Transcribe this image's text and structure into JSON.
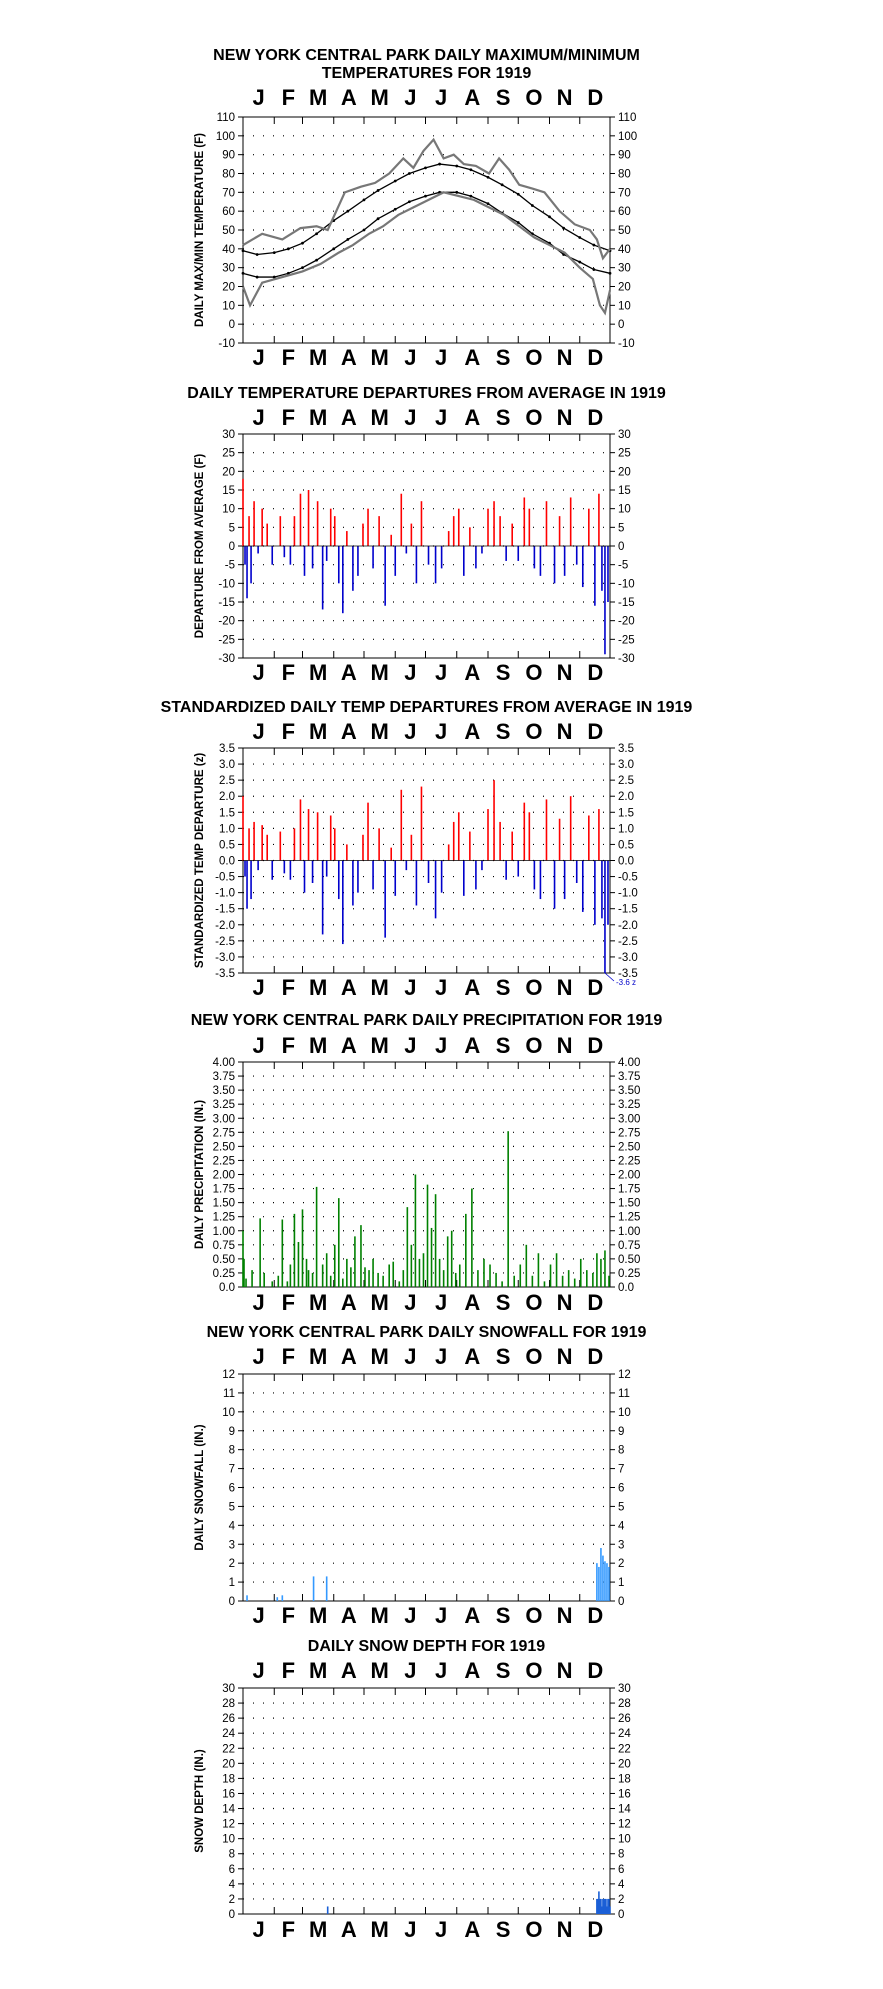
{
  "months": [
    "J",
    "F",
    "M",
    "A",
    "M",
    "J",
    "J",
    "A",
    "S",
    "O",
    "N",
    "D"
  ],
  "colors": {
    "max_min": "#777777",
    "normals": "#000000",
    "positive": "#ff0000",
    "negative": "#0000cc",
    "precip": "#008000",
    "snow": "#3399ff",
    "depth": "#1a5fd6"
  },
  "chart_data": [
    {
      "id": "maxmin",
      "type": "line",
      "title_lines": [
        "NEW YORK CENTRAL PARK DAILY MAXIMUM/MINIMUM",
        "TEMPERATURES FOR 1919"
      ],
      "ylabel": "DAILY MAX/MIN TEMPERATURE (F)",
      "ylim": [
        -10,
        110
      ],
      "yticks": [
        -10,
        0,
        10,
        20,
        30,
        40,
        50,
        60,
        70,
        80,
        90,
        100,
        110
      ],
      "ytick_labels": [
        "-10",
        "0",
        "10",
        "20",
        "30",
        "40",
        "50",
        "60",
        "70",
        "80",
        "90",
        "100",
        "110"
      ],
      "x_labels": [
        "J",
        "F",
        "M",
        "A",
        "M",
        "J",
        "J",
        "A",
        "S",
        "O",
        "N",
        "D"
      ],
      "series": [
        {
          "kind": "normal_max",
          "days": [
            1,
            15,
            32,
            46,
            60,
            74,
            91,
            105,
            121,
            135,
            152,
            166,
            182,
            196,
            213,
            227,
            244,
            258,
            274,
            288,
            305,
            319,
            335,
            349,
            365
          ],
          "values": [
            39,
            37,
            38,
            40,
            43,
            48,
            55,
            60,
            66,
            71,
            76,
            80,
            83,
            85,
            84,
            82,
            78,
            74,
            69,
            63,
            57,
            51,
            46,
            42,
            39
          ]
        },
        {
          "kind": "normal_min",
          "days": [
            1,
            15,
            32,
            46,
            60,
            74,
            91,
            105,
            121,
            135,
            152,
            166,
            182,
            196,
            213,
            227,
            244,
            258,
            274,
            288,
            305,
            319,
            335,
            349,
            365
          ],
          "values": [
            27,
            25,
            25,
            27,
            30,
            34,
            40,
            45,
            50,
            56,
            61,
            65,
            68,
            70,
            70,
            68,
            64,
            59,
            54,
            48,
            43,
            37,
            33,
            29,
            27
          ]
        },
        {
          "kind": "observed_max",
          "days": [
            1,
            20,
            40,
            58,
            74,
            85,
            102,
            118,
            132,
            146,
            160,
            170,
            180,
            190,
            200,
            210,
            220,
            232,
            245,
            255,
            265,
            275,
            288,
            300,
            315,
            330,
            345,
            352,
            358,
            365
          ],
          "values": [
            42,
            48,
            45,
            51,
            52,
            50,
            70,
            73,
            75,
            80,
            88,
            83,
            92,
            98,
            88,
            90,
            85,
            84,
            80,
            88,
            82,
            74,
            72,
            70,
            60,
            53,
            50,
            45,
            35,
            40
          ]
        },
        {
          "kind": "observed_min",
          "days": [
            1,
            8,
            20,
            40,
            60,
            78,
            96,
            110,
            126,
            140,
            155,
            170,
            185,
            200,
            215,
            230,
            245,
            260,
            275,
            290,
            305,
            320,
            335,
            348,
            355,
            360,
            365
          ],
          "values": [
            20,
            10,
            22,
            25,
            28,
            32,
            38,
            42,
            48,
            52,
            58,
            62,
            66,
            70,
            68,
            66,
            62,
            58,
            52,
            46,
            42,
            38,
            30,
            24,
            10,
            6,
            18
          ]
        }
      ]
    },
    {
      "id": "departures",
      "type": "bar",
      "title_lines": [
        "DAILY TEMPERATURE DEPARTURES FROM AVERAGE IN 1919"
      ],
      "ylabel": "DEPARTURE FROM AVERAGE (F)",
      "ylim": [
        -30,
        30
      ],
      "yticks": [
        -30,
        -25,
        -20,
        -15,
        -10,
        -5,
        0,
        5,
        10,
        15,
        20,
        25,
        30
      ],
      "ytick_labels": [
        "-30",
        "-25",
        "-20",
        "-15",
        "-10",
        "-5",
        "0",
        "5",
        "10",
        "15",
        "20",
        "25",
        "30"
      ],
      "x_labels": [
        "J",
        "F",
        "M",
        "A",
        "M",
        "J",
        "J",
        "A",
        "S",
        "O",
        "N",
        "D"
      ],
      "days": [
        1,
        3,
        5,
        7,
        9,
        12,
        16,
        20,
        25,
        30,
        38,
        42,
        48,
        52,
        58,
        62,
        66,
        70,
        75,
        80,
        84,
        88,
        92,
        96,
        100,
        104,
        110,
        115,
        120,
        125,
        130,
        136,
        142,
        148,
        152,
        158,
        163,
        168,
        173,
        178,
        185,
        192,
        198,
        205,
        210,
        215,
        220,
        226,
        232,
        238,
        244,
        250,
        256,
        262,
        268,
        274,
        280,
        285,
        290,
        296,
        302,
        310,
        315,
        320,
        326,
        332,
        338,
        344,
        350,
        354,
        357,
        360,
        363
      ],
      "values": [
        18,
        -5,
        -14,
        8,
        -10,
        12,
        -2,
        10,
        6,
        -5,
        8,
        -3,
        -5,
        8,
        14,
        -8,
        15,
        -6,
        12,
        -17,
        -4,
        10,
        8,
        -10,
        -18,
        4,
        -12,
        -8,
        6,
        10,
        -6,
        8,
        -16,
        3,
        -8,
        14,
        -2,
        6,
        -10,
        12,
        -5,
        -10,
        -6,
        4,
        8,
        10,
        -8,
        5,
        -6,
        -2,
        10,
        12,
        8,
        -4,
        6,
        -4,
        13,
        10,
        -6,
        -8,
        12,
        -10,
        8,
        -8,
        13,
        -5,
        -11,
        10,
        -16,
        14,
        -12,
        -29,
        -15
      ]
    },
    {
      "id": "standardized",
      "type": "bar",
      "title_lines": [
        "STANDARDIZED DAILY TEMP DEPARTURES FROM AVERAGE IN 1919"
      ],
      "ylabel": "STANDARDIZED TEMP DEPARTURE (z)",
      "ylim": [
        -3.5,
        3.5
      ],
      "yticks": [
        -3.5,
        -3.0,
        -2.5,
        -2.0,
        -1.5,
        -1.0,
        -0.5,
        0.0,
        0.5,
        1.0,
        1.5,
        2.0,
        2.5,
        3.0,
        3.5
      ],
      "ytick_labels_left": [
        "3.5",
        "3.0",
        "2.5",
        "2.0",
        "1.5",
        "1.0",
        "0.5",
        "0.0",
        "-0.5",
        "-1.0",
        "-1.5",
        "-2.0",
        "-2.5",
        "-3.0",
        "-3.5"
      ],
      "ytick_labels_right": [
        "3.5",
        "3.0",
        "2.5",
        "2.0",
        "1.5",
        "1.0",
        "0.5",
        "0.0",
        "-0.5",
        "-1.0",
        "-1.5",
        "-2.0",
        "-2.5",
        "-3.0",
        "-3.5"
      ],
      "x_labels": [
        "J",
        "F",
        "M",
        "A",
        "M",
        "J",
        "J",
        "A",
        "S",
        "O",
        "N",
        "D"
      ],
      "annotation": "-3.6 z",
      "days": [
        1,
        3,
        5,
        7,
        9,
        12,
        16,
        20,
        25,
        30,
        38,
        42,
        48,
        52,
        58,
        62,
        66,
        70,
        75,
        80,
        84,
        88,
        92,
        96,
        100,
        104,
        110,
        115,
        120,
        125,
        130,
        136,
        142,
        148,
        152,
        158,
        163,
        168,
        173,
        178,
        185,
        192,
        198,
        205,
        210,
        215,
        220,
        226,
        232,
        238,
        244,
        250,
        256,
        262,
        268,
        274,
        280,
        285,
        290,
        296,
        302,
        310,
        315,
        320,
        326,
        332,
        338,
        344,
        350,
        354,
        357,
        360,
        363
      ],
      "values": [
        2.0,
        -0.5,
        -1.5,
        1.0,
        -1.2,
        1.2,
        -0.3,
        1.1,
        0.8,
        -0.6,
        0.9,
        -0.4,
        -0.6,
        1.0,
        1.9,
        -1.0,
        1.6,
        -0.7,
        1.5,
        -2.3,
        -0.5,
        1.4,
        1.0,
        -1.2,
        -2.6,
        0.5,
        -1.4,
        -1.0,
        0.8,
        1.8,
        -0.9,
        1.0,
        -2.4,
        0.4,
        -1.1,
        2.2,
        -0.3,
        0.8,
        -1.4,
        2.3,
        -0.7,
        -1.8,
        -1.0,
        0.5,
        1.2,
        1.5,
        -1.1,
        0.9,
        -0.9,
        -0.3,
        1.6,
        2.5,
        1.2,
        -0.6,
        0.9,
        -0.5,
        1.8,
        1.5,
        -0.9,
        -1.2,
        1.9,
        -1.5,
        1.3,
        -1.2,
        2.0,
        -0.7,
        -1.6,
        1.4,
        -2.0,
        1.6,
        -1.8,
        -3.6,
        -2.0
      ]
    },
    {
      "id": "precip",
      "type": "bar",
      "title_lines": [
        "NEW YORK CENTRAL PARK DAILY PRECIPITATION FOR 1919"
      ],
      "ylabel": "DAILY PRECIPITATION (IN.)",
      "ylim": [
        0,
        4
      ],
      "yticks": [
        0,
        0.25,
        0.5,
        0.75,
        1.0,
        1.25,
        1.5,
        1.75,
        2.0,
        2.25,
        2.5,
        2.75,
        3.0,
        3.25,
        3.5,
        3.75,
        4.0
      ],
      "ytick_labels": [
        "0.0",
        "0.25",
        "0.50",
        "0.75",
        "1.00",
        "1.25",
        "1.50",
        "1.75",
        "2.00",
        "2.25",
        "2.50",
        "2.75",
        "3.00",
        "3.25",
        "3.50",
        "3.75",
        "4.00"
      ],
      "x_labels": [
        "J",
        "F",
        "M",
        "A",
        "M",
        "J",
        "J",
        "A",
        "S",
        "O",
        "N",
        "D"
      ],
      "days": [
        1,
        2,
        4,
        10,
        18,
        22,
        30,
        36,
        40,
        45,
        48,
        52,
        56,
        60,
        64,
        66,
        70,
        74,
        80,
        84,
        88,
        92,
        96,
        100,
        104,
        108,
        112,
        118,
        122,
        126,
        130,
        135,
        140,
        146,
        150,
        156,
        160,
        164,
        168,
        172,
        176,
        180,
        184,
        188,
        192,
        196,
        200,
        204,
        208,
        212,
        216,
        222,
        228,
        234,
        240,
        246,
        252,
        258,
        264,
        270,
        276,
        282,
        288,
        294,
        300,
        306,
        312,
        318,
        324,
        330,
        336,
        342,
        348,
        352,
        356,
        360,
        364
      ],
      "values": [
        1.0,
        0.5,
        0.15,
        0.3,
        1.22,
        0.25,
        0.1,
        0.2,
        1.2,
        0.1,
        0.4,
        1.3,
        0.8,
        1.38,
        0.5,
        0.3,
        0.25,
        1.78,
        0.4,
        0.6,
        0.2,
        0.75,
        1.58,
        0.15,
        0.5,
        0.35,
        0.9,
        1.1,
        0.35,
        0.3,
        0.5,
        0.25,
        0.2,
        0.4,
        0.45,
        0.1,
        0.3,
        1.42,
        0.75,
        2.0,
        0.5,
        0.6,
        1.82,
        1.05,
        1.65,
        0.5,
        0.3,
        0.9,
        1.0,
        0.25,
        0.4,
        1.3,
        1.75,
        0.3,
        0.5,
        0.4,
        0.25,
        0.1,
        2.77,
        0.2,
        0.4,
        0.75,
        0.2,
        0.6,
        0.1,
        0.4,
        0.6,
        0.2,
        0.3,
        0.15,
        0.5,
        0.3,
        0.25,
        0.6,
        0.5,
        0.65,
        0.2
      ]
    },
    {
      "id": "snowfall",
      "type": "bar",
      "title_lines": [
        "NEW YORK CENTRAL PARK DAILY SNOWFALL FOR 1919"
      ],
      "ylabel": "DAILY SNOWFALL (IN.)",
      "ylim": [
        0,
        12
      ],
      "yticks": [
        0,
        1,
        2,
        3,
        4,
        5,
        6,
        7,
        8,
        9,
        10,
        11,
        12
      ],
      "ytick_labels": [
        "0",
        "1",
        "2",
        "3",
        "4",
        "5",
        "6",
        "7",
        "8",
        "9",
        "10",
        "11",
        "12"
      ],
      "x_labels": [
        "J",
        "F",
        "M",
        "A",
        "M",
        "J",
        "J",
        "A",
        "S",
        "O",
        "N",
        "D"
      ],
      "days": [
        5,
        35,
        40,
        71,
        84,
        352,
        354,
        356,
        358,
        360,
        362,
        364
      ],
      "values": [
        0.3,
        0.2,
        0.3,
        1.3,
        1.3,
        2.0,
        1.8,
        2.8,
        2.4,
        2.1,
        2.0,
        1.8
      ]
    },
    {
      "id": "snowdepth",
      "type": "bar",
      "title_lines": [
        "DAILY SNOW DEPTH FOR 1919"
      ],
      "ylabel": "SNOW DEPTH (IN.)",
      "ylim": [
        0,
        30
      ],
      "yticks": [
        0,
        2,
        4,
        6,
        8,
        10,
        12,
        14,
        16,
        18,
        20,
        22,
        24,
        26,
        28,
        30
      ],
      "ytick_labels": [
        "0",
        "2",
        "4",
        "6",
        "8",
        "10",
        "12",
        "14",
        "16",
        "18",
        "20",
        "22",
        "24",
        "26",
        "28",
        "30"
      ],
      "x_labels": [
        "J",
        "F",
        "M",
        "A",
        "M",
        "J",
        "J",
        "A",
        "S",
        "O",
        "N",
        "D"
      ],
      "days": [
        85,
        352,
        353,
        354,
        355,
        356,
        357,
        358,
        359,
        360,
        361,
        362,
        363,
        364,
        365
      ],
      "values": [
        1,
        2,
        2,
        3,
        2,
        2,
        1,
        2,
        2,
        2,
        2,
        1,
        2,
        2,
        1
      ]
    }
  ]
}
